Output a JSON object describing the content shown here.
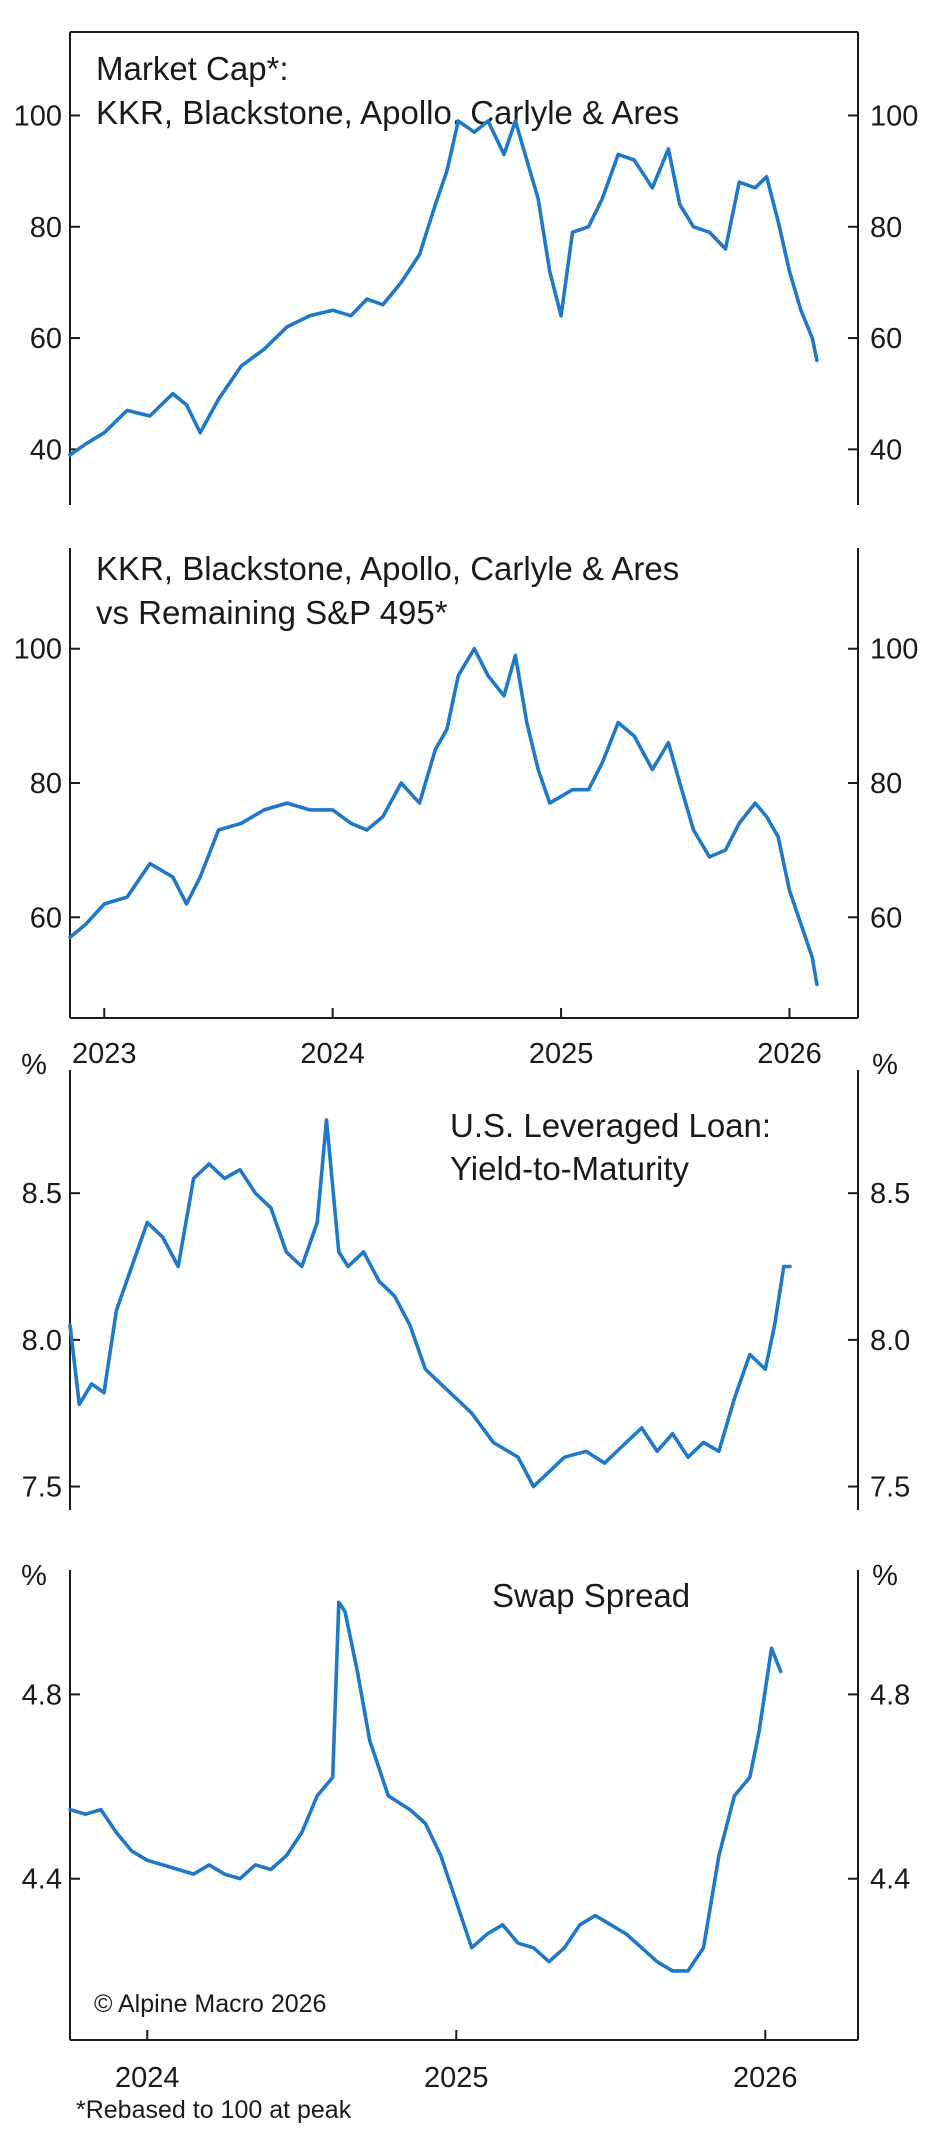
{
  "figure": {
    "copyright": "© Alpine Macro 2026",
    "footnote": "*Rebased to 100 at peak",
    "line_color": "#1f78c8"
  },
  "chart_data": [
    {
      "type": "line",
      "title": [
        "Market Cap*:",
        "KKR, Blackstone, Apollo, Carlyle & Ares"
      ],
      "unit_label": "",
      "ylim": [
        30,
        115
      ],
      "yticks": [
        40,
        60,
        80,
        100
      ],
      "ytick_labels": [
        "40",
        "60",
        "80",
        "100"
      ],
      "x_range": [
        2022.85,
        2026.3
      ],
      "x": [
        2022.85,
        2022.92,
        2023.0,
        2023.1,
        2023.2,
        2023.3,
        2023.36,
        2023.42,
        2023.5,
        2023.6,
        2023.7,
        2023.8,
        2023.9,
        2024.0,
        2024.08,
        2024.15,
        2024.22,
        2024.3,
        2024.38,
        2024.45,
        2024.5,
        2024.55,
        2024.62,
        2024.68,
        2024.75,
        2024.8,
        2024.85,
        2024.9,
        2024.95,
        2025.0,
        2025.05,
        2025.12,
        2025.18,
        2025.25,
        2025.32,
        2025.4,
        2025.47,
        2025.52,
        2025.58,
        2025.65,
        2025.72,
        2025.78,
        2025.85,
        2025.9,
        2025.95,
        2026.0,
        2026.05,
        2026.1,
        2026.12
      ],
      "series": [
        {
          "values": [
            39,
            41,
            43,
            47,
            46,
            50,
            48,
            43,
            49,
            55,
            58,
            62,
            64,
            65,
            64,
            67,
            66,
            70,
            75,
            84,
            90,
            99,
            97,
            99,
            93,
            99,
            92,
            85,
            72,
            64,
            79,
            80,
            85,
            93,
            92,
            87,
            94,
            84,
            80,
            79,
            76,
            88,
            87,
            89,
            81,
            72,
            65,
            60,
            56
          ]
        }
      ]
    },
    {
      "type": "line",
      "title": [
        "KKR, Blackstone, Apollo, Carlyle & Ares",
        "vs Remaining S&P 495*"
      ],
      "unit_label": "",
      "ylim": [
        45,
        115
      ],
      "yticks": [
        60,
        80,
        100
      ],
      "ytick_labels": [
        "60",
        "80",
        "100"
      ],
      "x_range": [
        2022.85,
        2026.3
      ],
      "x": [
        2022.85,
        2022.92,
        2023.0,
        2023.1,
        2023.2,
        2023.3,
        2023.36,
        2023.42,
        2023.5,
        2023.6,
        2023.7,
        2023.8,
        2023.9,
        2024.0,
        2024.08,
        2024.15,
        2024.22,
        2024.3,
        2024.38,
        2024.45,
        2024.5,
        2024.55,
        2024.62,
        2024.68,
        2024.75,
        2024.8,
        2024.85,
        2024.9,
        2024.95,
        2025.0,
        2025.05,
        2025.12,
        2025.18,
        2025.25,
        2025.32,
        2025.4,
        2025.47,
        2025.52,
        2025.58,
        2025.65,
        2025.72,
        2025.78,
        2025.85,
        2025.9,
        2025.95,
        2026.0,
        2026.05,
        2026.1,
        2026.12
      ],
      "series": [
        {
          "values": [
            57,
            59,
            62,
            63,
            68,
            66,
            62,
            66,
            73,
            74,
            76,
            77,
            76,
            76,
            74,
            73,
            75,
            80,
            77,
            85,
            88,
            96,
            100,
            96,
            93,
            99,
            89,
            82,
            77,
            78,
            79,
            79,
            83,
            89,
            87,
            82,
            86,
            80,
            73,
            69,
            70,
            74,
            77,
            75,
            72,
            64,
            59,
            54,
            50
          ]
        }
      ]
    },
    {
      "type": "line",
      "title": [
        "U.S. Leveraged Loan:",
        "Yield-to-Maturity"
      ],
      "unit_label": "%",
      "ylim": [
        7.42,
        8.92
      ],
      "yticks": [
        7.5,
        8.0,
        8.5
      ],
      "ytick_labels": [
        "7.5",
        "8.0",
        "8.5"
      ],
      "x_range": [
        2023.75,
        2026.3
      ],
      "x": [
        2023.75,
        2023.78,
        2023.82,
        2023.86,
        2023.9,
        2023.95,
        2024.0,
        2024.05,
        2024.1,
        2024.15,
        2024.2,
        2024.25,
        2024.3,
        2024.35,
        2024.4,
        2024.45,
        2024.5,
        2024.55,
        2024.58,
        2024.62,
        2024.65,
        2024.7,
        2024.75,
        2024.8,
        2024.85,
        2024.9,
        2024.95,
        2025.0,
        2025.05,
        2025.12,
        2025.2,
        2025.25,
        2025.3,
        2025.35,
        2025.42,
        2025.48,
        2025.55,
        2025.6,
        2025.65,
        2025.7,
        2025.75,
        2025.8,
        2025.85,
        2025.9,
        2025.95,
        2026.0,
        2026.03,
        2026.06,
        2026.08
      ],
      "series": [
        {
          "values": [
            8.05,
            7.78,
            7.85,
            7.82,
            8.1,
            8.25,
            8.4,
            8.35,
            8.25,
            8.55,
            8.6,
            8.55,
            8.58,
            8.5,
            8.45,
            8.3,
            8.25,
            8.4,
            8.75,
            8.3,
            8.25,
            8.3,
            8.2,
            8.15,
            8.05,
            7.9,
            7.85,
            7.8,
            7.75,
            7.65,
            7.6,
            7.5,
            7.55,
            7.6,
            7.62,
            7.58,
            7.65,
            7.7,
            7.62,
            7.68,
            7.6,
            7.65,
            7.62,
            7.8,
            7.95,
            7.9,
            8.05,
            8.25,
            8.25
          ]
        }
      ]
    },
    {
      "type": "line",
      "title": [
        "Swap Spread"
      ],
      "unit_label": "%",
      "ylim": [
        4.05,
        5.07
      ],
      "yticks": [
        4.4,
        4.8
      ],
      "ytick_labels": [
        "4.4",
        "4.8"
      ],
      "x_range": [
        2023.75,
        2026.3
      ],
      "x": [
        2023.75,
        2023.8,
        2023.85,
        2023.9,
        2023.95,
        2024.0,
        2024.05,
        2024.1,
        2024.15,
        2024.2,
        2024.25,
        2024.3,
        2024.35,
        2024.4,
        2024.45,
        2024.5,
        2024.55,
        2024.6,
        2024.62,
        2024.64,
        2024.68,
        2024.72,
        2024.78,
        2024.85,
        2024.9,
        2024.95,
        2025.0,
        2025.05,
        2025.1,
        2025.15,
        2025.2,
        2025.25,
        2025.3,
        2025.35,
        2025.4,
        2025.45,
        2025.5,
        2025.55,
        2025.6,
        2025.65,
        2025.7,
        2025.75,
        2025.8,
        2025.85,
        2025.9,
        2025.95,
        2025.98,
        2026.02,
        2026.05
      ],
      "series": [
        {
          "values": [
            4.55,
            4.54,
            4.55,
            4.5,
            4.46,
            4.44,
            4.43,
            4.42,
            4.41,
            4.43,
            4.41,
            4.4,
            4.43,
            4.42,
            4.45,
            4.5,
            4.58,
            4.62,
            5.0,
            4.98,
            4.85,
            4.7,
            4.58,
            4.55,
            4.52,
            4.45,
            4.35,
            4.25,
            4.28,
            4.3,
            4.26,
            4.25,
            4.22,
            4.25,
            4.3,
            4.32,
            4.3,
            4.28,
            4.25,
            4.22,
            4.2,
            4.2,
            4.25,
            4.45,
            4.58,
            4.62,
            4.72,
            4.9,
            4.85
          ]
        }
      ]
    }
  ],
  "year_axes": [
    {
      "labels": [
        "2023",
        "2024",
        "2025",
        "2026"
      ],
      "values": [
        2023.0,
        2024.0,
        2025.0,
        2026.0
      ]
    },
    {
      "labels": [
        "2024",
        "2025",
        "2026"
      ],
      "values": [
        2024.0,
        2025.0,
        2026.0
      ]
    }
  ]
}
